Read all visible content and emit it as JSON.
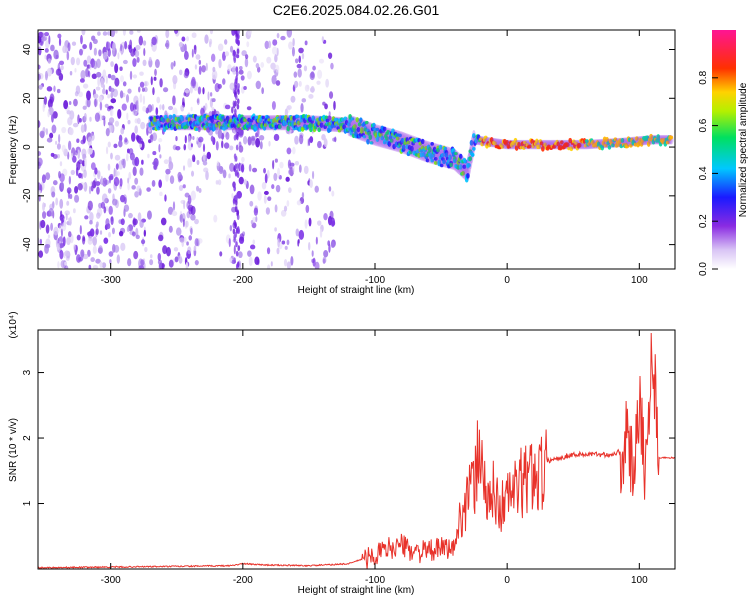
{
  "figure_title": "C2E6.2025.084.02.26.G01",
  "colors": {
    "snr_line": "#e8322a",
    "axis": "#000000",
    "background": "#ffffff"
  },
  "chart_data": [
    {
      "type": "heatmap",
      "title": "C2E6.2025.084.02.26.G01",
      "xlabel": "Height of straight line (km)",
      "ylabel": "Frequency (Hz)",
      "xlim": [
        -355,
        127
      ],
      "ylim": [
        -50,
        48
      ],
      "xticks": [
        -300,
        -200,
        -100,
        0,
        100
      ],
      "yticks": [
        -40,
        -20,
        0,
        20,
        40
      ],
      "colorbar": {
        "label": "Normalized spectral amplitude",
        "range": [
          0,
          1
        ],
        "ticks": [
          "0.0",
          "0.2",
          "0.4",
          "0.6",
          "0.8"
        ],
        "colormap": "rainbow (white-violet-blue-cyan-green-yellow-red-magenta)"
      },
      "grid": false,
      "ridge_points": [
        {
          "x": -270,
          "y": 10
        },
        {
          "x": -200,
          "y": 10
        },
        {
          "x": -150,
          "y": 10
        },
        {
          "x": -120,
          "y": 9
        },
        {
          "x": -100,
          "y": 5
        },
        {
          "x": -80,
          "y": 2
        },
        {
          "x": -60,
          "y": -2
        },
        {
          "x": -40,
          "y": -5
        },
        {
          "x": -30,
          "y": -10
        },
        {
          "x": -25,
          "y": 3
        },
        {
          "x": 0,
          "y": 1
        },
        {
          "x": 30,
          "y": 1
        },
        {
          "x": 60,
          "y": 1
        },
        {
          "x": 90,
          "y": 2
        },
        {
          "x": 110,
          "y": 3
        },
        {
          "x": 125,
          "y": 3
        }
      ]
    },
    {
      "type": "line",
      "xlabel": "Height of straight line (km)",
      "ylabel": "SNR (10 * v/v)",
      "y_multiplier": "(x10⁴)",
      "xlim": [
        -355,
        127
      ],
      "ylim": [
        0,
        3.65
      ],
      "xticks": [
        -300,
        -200,
        -100,
        0,
        100
      ],
      "yticks": [
        1,
        2,
        3
      ],
      "grid": false,
      "series": [
        {
          "x": [
            -355,
            -300,
            -250,
            -210,
            -200,
            -180,
            -150,
            -120,
            -110,
            -100,
            -90,
            -80,
            -70,
            -60,
            -50,
            -40,
            -35,
            -30,
            -25,
            -20,
            -15,
            -10,
            -5,
            0,
            10,
            20,
            30,
            40,
            50,
            60,
            70,
            80,
            85,
            90,
            95,
            100,
            105,
            110,
            115,
            127
          ],
          "y": [
            0.02,
            0.03,
            0.04,
            0.05,
            0.08,
            0.06,
            0.05,
            0.08,
            0.15,
            0.25,
            0.35,
            0.4,
            0.3,
            0.3,
            0.35,
            0.35,
            0.9,
            1.2,
            1.4,
            2.1,
            1.0,
            1.3,
            1.0,
            1.2,
            1.4,
            1.6,
            1.65,
            1.7,
            1.75,
            1.75,
            1.75,
            1.75,
            1.8,
            2.0,
            1.6,
            2.8,
            1.5,
            3.6,
            1.7,
            1.7
          ]
        }
      ]
    }
  ]
}
